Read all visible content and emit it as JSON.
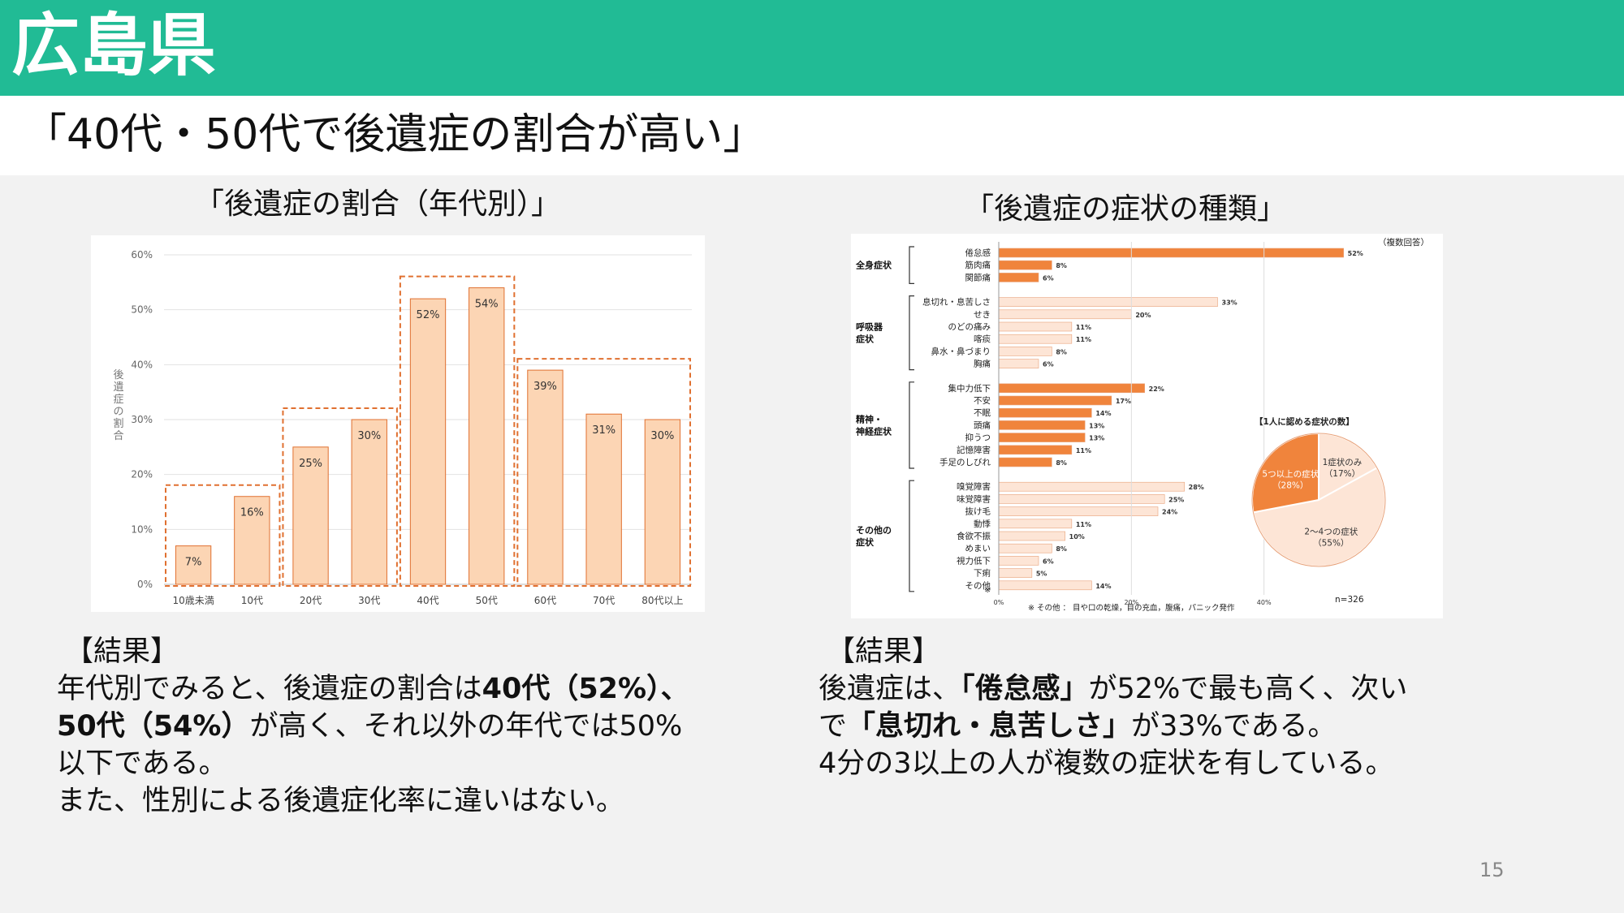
{
  "header": {
    "prefecture": "広島県",
    "headline": "「40代・50代で後遺症の割合が高い」"
  },
  "left_chart_title": "「後遺症の割合（年代別）」",
  "right_chart_title": "「後遺症の症状の種類」",
  "chart_data": [
    {
      "type": "bar",
      "categories": [
        "10歳未満",
        "10代",
        "20代",
        "30代",
        "40代",
        "50代",
        "60代",
        "70代",
        "80代以上"
      ],
      "values": [
        7,
        16,
        25,
        30,
        52,
        54,
        39,
        31,
        30
      ],
      "data_labels": [
        "7%",
        "16%",
        "25%",
        "30%",
        "52%",
        "54%",
        "39%",
        "31%",
        "30%"
      ],
      "ylabel": "後遺症の割合",
      "yticks": [
        "0%",
        "10%",
        "20%",
        "30%",
        "40%",
        "50%",
        "60%"
      ],
      "ylim": [
        0,
        60
      ],
      "grid": true,
      "bar_color": "#fcd5b4",
      "bar_edge": "#e07030",
      "highlight_groups": [
        [
          0,
          1
        ],
        [
          2,
          3
        ],
        [
          4,
          5
        ],
        [
          6,
          8
        ]
      ]
    },
    {
      "type": "bar",
      "orientation": "horizontal",
      "note": "（複数回答）",
      "footnote": "※ その他 ： 目や口の乾燥，目の充血，腹痛，パニック発作",
      "n_label": "n=326",
      "xticks": [
        "0%",
        "20%",
        "40%"
      ],
      "xlim": [
        0,
        60
      ],
      "groups": [
        {
          "name": "全身症状",
          "items": [
            {
              "label": "倦怠感",
              "value": 52,
              "text": "52%",
              "dark": true
            },
            {
              "label": "筋肉痛",
              "value": 8,
              "text": "8%",
              "dark": true
            },
            {
              "label": "関節痛",
              "value": 6,
              "text": "6%",
              "dark": true
            }
          ]
        },
        {
          "name": "呼吸器\n症状",
          "items": [
            {
              "label": "息切れ・息苦しさ",
              "value": 33,
              "text": "33%",
              "dark": false
            },
            {
              "label": "せき",
              "value": 20,
              "text": "20%",
              "dark": false
            },
            {
              "label": "のどの痛み",
              "value": 11,
              "text": "11%",
              "dark": false
            },
            {
              "label": "喀痰",
              "value": 11,
              "text": "11%",
              "dark": false
            },
            {
              "label": "鼻水・鼻づまり",
              "value": 8,
              "text": "8%",
              "dark": false
            },
            {
              "label": "胸痛",
              "value": 6,
              "text": "6%",
              "dark": false
            }
          ]
        },
        {
          "name": "精神・\n神経症状",
          "items": [
            {
              "label": "集中力低下",
              "value": 22,
              "text": "22%",
              "dark": true
            },
            {
              "label": "不安",
              "value": 17,
              "text": "17%",
              "dark": true
            },
            {
              "label": "不眠",
              "value": 14,
              "text": "14%",
              "dark": true
            },
            {
              "label": "頭痛",
              "value": 13,
              "text": "13%",
              "dark": true
            },
            {
              "label": "抑うつ",
              "value": 13,
              "text": "13%",
              "dark": true
            },
            {
              "label": "記憶障害",
              "value": 11,
              "text": "11%",
              "dark": true
            },
            {
              "label": "手足のしびれ",
              "value": 8,
              "text": "8%",
              "dark": true
            }
          ]
        },
        {
          "name": "その他の\n症状",
          "items": [
            {
              "label": "嗅覚障害",
              "value": 28,
              "text": "28%",
              "dark": false
            },
            {
              "label": "味覚障害",
              "value": 25,
              "text": "25%",
              "dark": false
            },
            {
              "label": "抜け毛",
              "value": 24,
              "text": "24%",
              "dark": false
            },
            {
              "label": "動悸",
              "value": 11,
              "text": "11%",
              "dark": false
            },
            {
              "label": "食欲不振",
              "value": 10,
              "text": "10%",
              "dark": false
            },
            {
              "label": "めまい",
              "value": 8,
              "text": "8%",
              "dark": false
            },
            {
              "label": "視力低下",
              "value": 6,
              "text": "6%",
              "dark": false
            },
            {
              "label": "下痢",
              "value": 5,
              "text": "5%",
              "dark": false
            },
            {
              "label": "その他",
              "value": 14,
              "text": "14%",
              "dark": false
            }
          ]
        }
      ],
      "other_mark": "※",
      "colors": {
        "dark": "#f0843c",
        "light": "#fde5d6",
        "edge": "#e8a27a"
      }
    },
    {
      "type": "pie",
      "title": "【1人に認める症状の数】",
      "slices": [
        {
          "label": "1症状のみ",
          "pct": "（17%）",
          "value": 17,
          "color": "#fde5d6"
        },
        {
          "label": "2～4つの症状",
          "pct": "（55%）",
          "value": 55,
          "color": "#fde5d6"
        },
        {
          "label": "5つ以上の症状",
          "pct": "（28%）",
          "value": 28,
          "color": "#f0843c"
        }
      ]
    }
  ],
  "result_left": {
    "heading": "【結果】",
    "l1_pre": "年代別でみると、後遺症の割合は",
    "l1_bold": "40代（52%）、",
    "l2_bold": "50代（54%）",
    "l2_post": "が高く、それ以外の年代では50%",
    "l3": "以下である。",
    "l4": "また、性別による後遺症化率に違いはない。"
  },
  "result_right": {
    "heading": "【結果】",
    "l1_pre": "後遺症は、",
    "l1_bold": "「倦怠感」",
    "l1_post": "が52%で最も高く、次い",
    "l2_pre": "で",
    "l2_bold": "「息切れ・息苦しさ」",
    "l2_post": "が33%である。",
    "l3": "4分の3以上の人が複数の症状を有している。"
  },
  "page_number": "15"
}
